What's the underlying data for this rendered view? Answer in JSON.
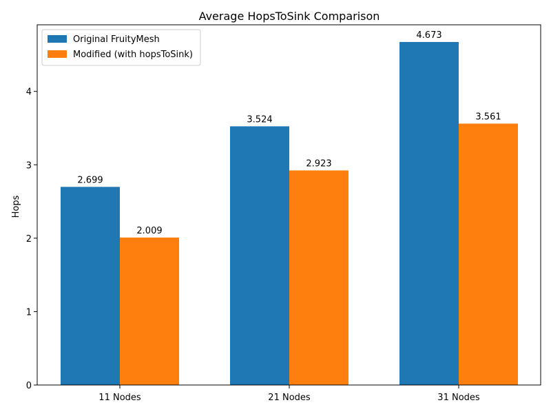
{
  "chart_data": {
    "type": "bar",
    "title": "Average HopsToSink Comparison",
    "xlabel": "",
    "ylabel": "Hops",
    "categories": [
      "11 Nodes",
      "21 Nodes",
      "31 Nodes"
    ],
    "series": [
      {
        "name": "Original FruityMesh",
        "color": "#1f77b4",
        "values": [
          2.699,
          3.524,
          4.673
        ]
      },
      {
        "name": "Modified (with hopsToSink)",
        "color": "#ff7f0e",
        "values": [
          2.009,
          2.923,
          3.561
        ]
      }
    ],
    "ylim": [
      0,
      4.907
    ],
    "yticks": [
      0,
      1,
      2,
      3,
      4
    ],
    "grid": false,
    "legend_position": "top-left"
  }
}
